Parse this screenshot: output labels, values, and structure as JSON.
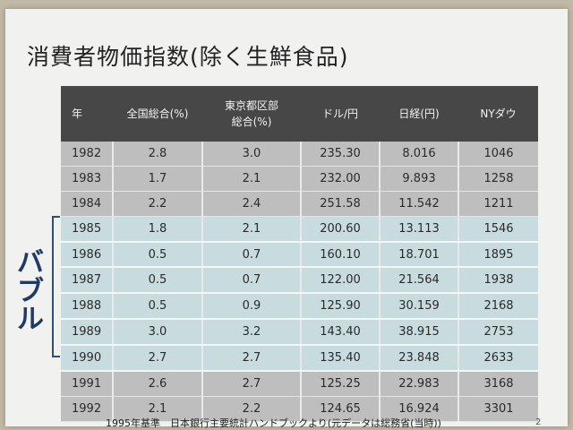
{
  "slide": {
    "title": "消費者物価指数(除く生鮮食品)",
    "bubble_label": [
      "バ",
      "ブ",
      "ル"
    ],
    "footer": "1995年基準　日本銀行主要統計ハンドブックより(元データは総務省(当時))",
    "page_number": "2"
  },
  "table": {
    "headers": [
      "年",
      "全国総合(%)",
      "東京都区部\n総合(%)",
      "ドル/円",
      "日経(円)",
      "NYダウ"
    ],
    "rows": [
      [
        "1982",
        "2.8",
        "3.0",
        "235.30",
        "8.016",
        "1046"
      ],
      [
        "1983",
        "1.7",
        "2.1",
        "232.00",
        "9.893",
        "1258"
      ],
      [
        "1984",
        "2.2",
        "2.4",
        "251.58",
        "11.542",
        "1211"
      ],
      [
        "1985",
        "1.8",
        "2.1",
        "200.60",
        "13.113",
        "1546"
      ],
      [
        "1986",
        "0.5",
        "0.7",
        "160.10",
        "18.701",
        "1895"
      ],
      [
        "1987",
        "0.5",
        "0.7",
        "122.00",
        "21.564",
        "1938"
      ],
      [
        "1988",
        "0.5",
        "0.9",
        "125.90",
        "30.159",
        "2168"
      ],
      [
        "1989",
        "3.0",
        "3.2",
        "143.40",
        "38.915",
        "2753"
      ],
      [
        "1990",
        "2.7",
        "2.7",
        "135.40",
        "23.848",
        "2633"
      ],
      [
        "1991",
        "2.6",
        "2.7",
        "125.25",
        "22.983",
        "3168"
      ],
      [
        "1992",
        "2.1",
        "2.2",
        "124.65",
        "16.924",
        "3301"
      ]
    ],
    "highlight_rows": [
      3,
      4,
      5,
      6,
      7,
      8
    ],
    "colors": {
      "header_bg": "#474747",
      "grey_row": "#bebebe",
      "highlight_row": "#c8dcdf",
      "bubble_label": "#1e3a66"
    }
  }
}
